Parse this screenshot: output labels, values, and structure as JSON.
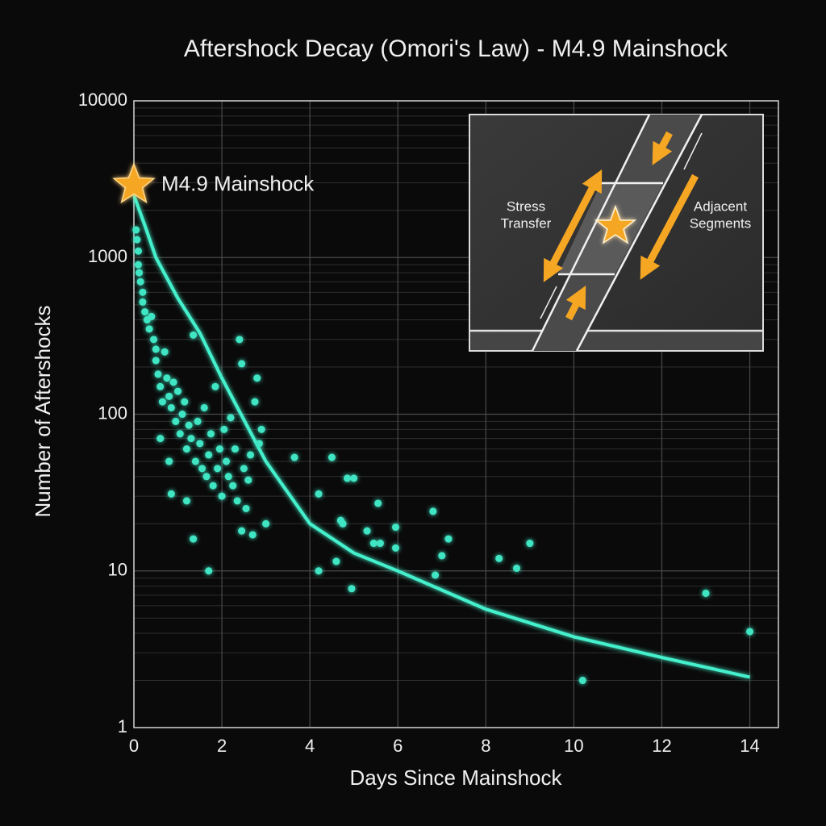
{
  "chart_data": {
    "type": "scatter",
    "title": "Aftershock Decay (Omori's Law) - M4.9 Mainshock",
    "xlabel": "Days Since Mainshock",
    "ylabel": "Number of Aftershocks",
    "xlim": [
      0,
      14.65
    ],
    "ylim": [
      1,
      10000
    ],
    "log_y": true,
    "grid": true,
    "xticks": [
      0,
      2,
      4,
      6,
      8,
      10,
      12,
      14
    ],
    "yticks": [
      1,
      10,
      100,
      1000,
      10000
    ],
    "color": "#3fe6c4",
    "x": [
      0.05,
      0.07,
      0.1,
      0.1,
      0.12,
      0.15,
      0.2,
      0.2,
      0.25,
      0.3,
      0.35,
      0.4,
      0.45,
      0.5,
      0.5,
      0.55,
      0.6,
      0.65,
      0.7,
      0.75,
      0.8,
      0.85,
      0.9,
      0.95,
      1.0,
      1.05,
      1.1,
      1.15,
      1.2,
      1.25,
      1.3,
      1.35,
      1.4,
      1.45,
      1.5,
      1.55,
      1.6,
      1.65,
      1.7,
      1.75,
      1.8,
      1.85,
      1.9,
      1.95,
      2.0,
      2.05,
      2.1,
      2.15,
      2.2,
      2.25,
      2.3,
      2.35,
      2.4,
      2.45,
      2.5,
      2.55,
      2.6,
      2.65,
      2.7,
      2.75,
      2.8,
      2.85,
      2.9,
      3.0,
      0.6,
      0.8,
      0.85,
      1.2,
      1.35,
      1.7,
      2.45,
      3.65,
      4.2,
      4.5,
      4.7,
      4.75,
      4.6,
      4.2,
      4.85,
      5.0,
      5.3,
      5.45,
      5.55,
      5.6,
      4.95,
      5.95,
      5.95,
      6.8,
      7.0,
      7.15,
      6.85,
      8.3,
      8.7,
      9.0,
      10.2,
      13.0,
      14.0
    ],
    "y": [
      1500,
      1300,
      1100,
      900,
      800,
      700,
      600,
      520,
      450,
      400,
      350,
      420,
      300,
      260,
      220,
      180,
      150,
      120,
      250,
      170,
      130,
      110,
      160,
      90,
      140,
      75,
      100,
      120,
      60,
      85,
      70,
      320,
      50,
      90,
      65,
      45,
      110,
      40,
      55,
      75,
      35,
      150,
      45,
      60,
      30,
      80,
      50,
      40,
      95,
      35,
      60,
      28,
      300,
      210,
      45,
      25,
      38,
      55,
      17,
      120,
      170,
      65,
      80,
      20,
      70,
      50,
      31,
      28,
      16,
      10,
      18,
      53,
      31,
      53,
      21,
      20,
      11.5,
      10,
      39,
      39,
      18,
      15,
      27,
      15,
      7.7,
      19,
      14,
      24,
      12.5,
      16,
      9.4,
      12,
      10.4,
      15,
      2,
      7.2,
      4.1
    ],
    "fit": {
      "color": "#44f0cc",
      "x": [
        0,
        0.25,
        0.5,
        1,
        1.5,
        2,
        3,
        4,
        5,
        6,
        8,
        10,
        12,
        14
      ],
      "y": [
        2500,
        1600,
        1000,
        550,
        330,
        170,
        50,
        20,
        13,
        10,
        5.7,
        3.8,
        2.8,
        2.1
      ]
    },
    "annotation": {
      "text": "M4.9 Mainshock",
      "x": 0,
      "y": 2900,
      "color": "#f5a623"
    },
    "inset": {
      "left_label": [
        "Stress",
        "Transfer"
      ],
      "right_label": [
        "Adjacent",
        "Segments"
      ]
    }
  }
}
